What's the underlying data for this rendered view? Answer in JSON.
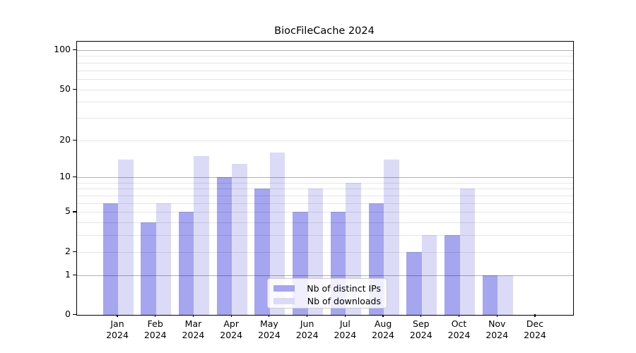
{
  "chart_data": {
    "type": "bar",
    "title": "BiocFileCache 2024",
    "categories": [
      "Jan",
      "Feb",
      "Mar",
      "Apr",
      "May",
      "Jun",
      "Jul",
      "Aug",
      "Sep",
      "Oct",
      "Nov",
      "Dec"
    ],
    "x_year": "2024",
    "series": [
      {
        "name": "Nb of distinct IPs",
        "color": "#a5a5f0",
        "values": [
          6,
          4,
          5,
          10,
          8,
          5,
          5,
          6,
          2,
          3,
          1,
          0
        ]
      },
      {
        "name": "Nb of downloads",
        "color": "#dbdbf8",
        "values": [
          14,
          6,
          15,
          13,
          16,
          8,
          9,
          14,
          3,
          8,
          1,
          0
        ]
      }
    ],
    "yscale": "log1p",
    "ylim": [
      0,
      100
    ],
    "yticks": [
      0,
      1,
      2,
      5,
      10,
      20,
      50,
      100
    ],
    "major_gridlines": [
      1,
      10,
      100
    ],
    "minor_gridlines": [
      2,
      3,
      4,
      5,
      6,
      7,
      8,
      9,
      20,
      30,
      40,
      50,
      60,
      70,
      80,
      90
    ],
    "grid": "horizontal",
    "legend": {
      "position": "bottom-center",
      "items": [
        "Nb of distinct IPs",
        "Nb of downloads"
      ]
    },
    "colors": {
      "major_grid": "rgba(0,0,0,0.30)",
      "minor_grid": "rgba(0,0,0,0.10)",
      "axis": "#000000"
    }
  }
}
